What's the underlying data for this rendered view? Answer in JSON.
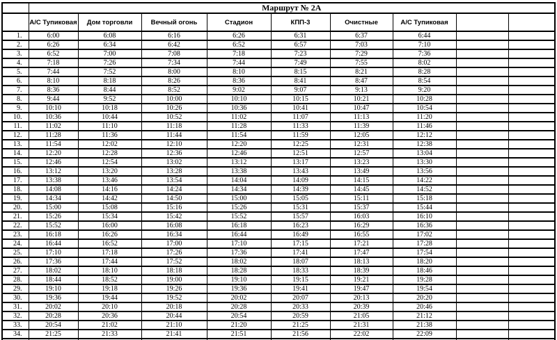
{
  "title": "Маршрут № 2А",
  "columns": [
    "А/С Тупиковая",
    "Дом торговли",
    "Вечный огонь",
    "Стадион",
    "КПП-3",
    "Очистные",
    "А/С Тупиковая"
  ],
  "rows": [
    {
      "n": "1.",
      "times": [
        "6:00",
        "6:08",
        "6:16",
        "6:26",
        "6:31",
        "6:37",
        "6:44"
      ]
    },
    {
      "n": "2.",
      "times": [
        "6:26",
        "6:34",
        "6:42",
        "6:52",
        "6:57",
        "7:03",
        "7:10"
      ]
    },
    {
      "n": "3.",
      "times": [
        "6:52",
        "7:00",
        "7:08",
        "7:18",
        "7:23",
        "7:29",
        "7:36"
      ]
    },
    {
      "n": "4.",
      "times": [
        "7:18",
        "7:26",
        "7:34",
        "7:44",
        "7:49",
        "7:55",
        "8:02"
      ]
    },
    {
      "n": "5.",
      "times": [
        "7:44",
        "7:52",
        "8:00",
        "8:10",
        "8:15",
        "8:21",
        "8:28"
      ]
    },
    {
      "n": "6.",
      "times": [
        "8:10",
        "8:18",
        "8:26",
        "8:36",
        "8:41",
        "8:47",
        "8:54"
      ]
    },
    {
      "n": "7.",
      "times": [
        "8:36",
        "8:44",
        "8:52",
        "9:02",
        "9:07",
        "9:13",
        "9:20"
      ]
    },
    {
      "n": "8.",
      "times": [
        "9:44",
        "9:52",
        "10:00",
        "10:10",
        "10:15",
        "10:21",
        "10:28"
      ]
    },
    {
      "n": "9.",
      "times": [
        "10:10",
        "10:18",
        "10:26",
        "10:36",
        "10:41",
        "10:47",
        "10:54"
      ]
    },
    {
      "n": "10.",
      "times": [
        "10:36",
        "10:44",
        "10:52",
        "11:02",
        "11:07",
        "11:13",
        "11:20"
      ]
    },
    {
      "n": "11.",
      "times": [
        "11:02",
        "11:10",
        "11:18",
        "11:28",
        "11:33",
        "11:39",
        "11:46"
      ]
    },
    {
      "n": "12.",
      "times": [
        "11:28",
        "11:36",
        "11:44",
        "11:54",
        "11:59",
        "12:05",
        "12:12"
      ]
    },
    {
      "n": "13.",
      "times": [
        "11:54",
        "12:02",
        "12:10",
        "12:20",
        "12:25",
        "12:31",
        "12:38"
      ]
    },
    {
      "n": "14.",
      "times": [
        "12:20",
        "12:28",
        "12:36",
        "12:46",
        "12:51",
        "12:57",
        "13:04"
      ]
    },
    {
      "n": "15.",
      "times": [
        "12:46",
        "12:54",
        "13:02",
        "13:12",
        "13:17",
        "13:23",
        "13:30"
      ]
    },
    {
      "n": "16.",
      "times": [
        "13:12",
        "13:20",
        "13:28",
        "13:38",
        "13:43",
        "13:49",
        "13:56"
      ]
    },
    {
      "n": "17.",
      "times": [
        "13:38",
        "13:46",
        "13:54",
        "14:04",
        "14:09",
        "14:15",
        "14:22"
      ]
    },
    {
      "n": "18.",
      "times": [
        "14:08",
        "14:16",
        "14:24",
        "14:34",
        "14:39",
        "14:45",
        "14:52"
      ]
    },
    {
      "n": "19.",
      "times": [
        "14:34",
        "14:42",
        "14:50",
        "15:00",
        "15:05",
        "15:11",
        "15:18"
      ]
    },
    {
      "n": "20.",
      "times": [
        "15:00",
        "15:08",
        "15:16",
        "15:26",
        "15:31",
        "15:37",
        "15:44"
      ]
    },
    {
      "n": "21.",
      "times": [
        "15:26",
        "15:34",
        "15:42",
        "15:52",
        "15:57",
        "16:03",
        "16:10"
      ]
    },
    {
      "n": "22.",
      "times": [
        "15:52",
        "16:00",
        "16:08",
        "16:18",
        "16:23",
        "16:29",
        "16:36"
      ]
    },
    {
      "n": "23.",
      "times": [
        "16:18",
        "16:26",
        "16:34",
        "16:44",
        "16:49",
        "16:55",
        "17:02"
      ]
    },
    {
      "n": "24.",
      "times": [
        "16:44",
        "16:52",
        "17:00",
        "17:10",
        "17:15",
        "17:21",
        "17:28"
      ]
    },
    {
      "n": "25.",
      "times": [
        "17:10",
        "17:18",
        "17:26",
        "17:36",
        "17:41",
        "17:47",
        "17:54"
      ]
    },
    {
      "n": "26.",
      "times": [
        "17:36",
        "17:44",
        "17:52",
        "18:02",
        "18:07",
        "18:13",
        "18:20"
      ]
    },
    {
      "n": "27.",
      "times": [
        "18:02",
        "18:10",
        "18:18",
        "18:28",
        "18:33",
        "18:39",
        "18:46"
      ]
    },
    {
      "n": "28.",
      "times": [
        "18:44",
        "18:52",
        "19:00",
        "19:10",
        "19:15",
        "19:21",
        "19:28"
      ]
    },
    {
      "n": "29.",
      "times": [
        "19:10",
        "19:18",
        "19:26",
        "19:36",
        "19:41",
        "19:47",
        "19:54"
      ]
    },
    {
      "n": "30.",
      "times": [
        "19:36",
        "19:44",
        "19:52",
        "20:02",
        "20:07",
        "20:13",
        "20:20"
      ]
    },
    {
      "n": "31.",
      "times": [
        "20:02",
        "20:10",
        "20:18",
        "20:28",
        "20:33",
        "20:39",
        "20:46"
      ]
    },
    {
      "n": "32.",
      "times": [
        "20:28",
        "20:36",
        "20:44",
        "20:54",
        "20:59",
        "21:05",
        "21:12"
      ]
    },
    {
      "n": "33.",
      "times": [
        "20:54",
        "21:02",
        "21:10",
        "21:20",
        "21:25",
        "21:31",
        "21:38"
      ]
    },
    {
      "n": "34.",
      "times": [
        "21:25",
        "21:33",
        "21:41",
        "21:51",
        "21:56",
        "22:02",
        "22:09"
      ]
    }
  ]
}
